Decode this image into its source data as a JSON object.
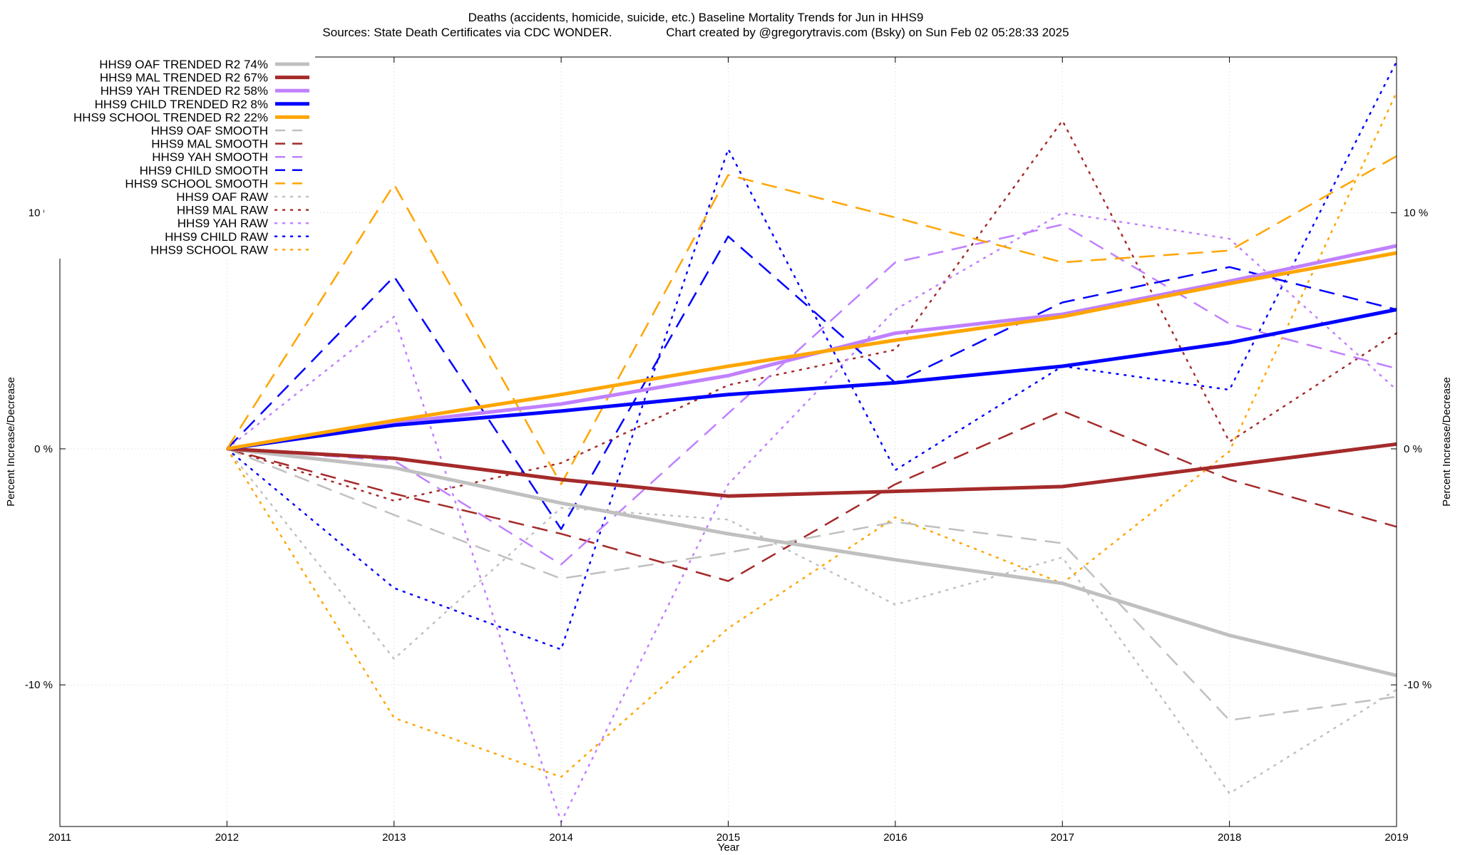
{
  "chart_data": {
    "type": "line",
    "title": "Deaths (accidents, homicide, suicide, etc.)  Baseline Mortality Trends for Jun in HHS9",
    "subtitle": "Sources: State Death Certificates via CDC WONDER.                Chart created by @gregorytravis.com (Bsky) on Sun Feb 02 05:28:33 2025",
    "xlabel": "Year",
    "ylabel": "Percent Increase/Decrease",
    "y2label": "Percent Increase/Decrease",
    "xlim": [
      2011,
      2019
    ],
    "ylim": [
      -16,
      16.6
    ],
    "x_ticks": [
      "2011",
      "2012",
      "2013",
      "2014",
      "2015",
      "2016",
      "2017",
      "2018",
      "2019"
    ],
    "y_ticks": [
      {
        "value": 10,
        "label": "10 %"
      },
      {
        "value": 0,
        "label": "0 %"
      },
      {
        "value": -10,
        "label": "-10 %"
      }
    ],
    "grid": true,
    "legend_position": "top-left",
    "x": [
      2012,
      2013,
      2014,
      2015,
      2016,
      2017,
      2018,
      2019
    ],
    "series": [
      {
        "name": "HHS9 OAF TRENDED R2  74%",
        "color": "#c0c0c0",
        "style": "trend",
        "values": [
          0,
          -0.8,
          -2.3,
          -3.6,
          -4.7,
          -5.7,
          -7.9,
          -9.6
        ]
      },
      {
        "name": "HHS9 MAL TRENDED R2  67%",
        "color": "#a52a2a",
        "style": "trend",
        "values": [
          0,
          -0.4,
          -1.3,
          -2.0,
          -1.8,
          -1.6,
          -0.7,
          0.2
        ]
      },
      {
        "name": "HHS9 YAH TRENDED R2  58%",
        "color": "#c080ff",
        "style": "trend",
        "values": [
          0,
          1.1,
          1.9,
          3.1,
          4.9,
          5.7,
          7.1,
          8.6
        ]
      },
      {
        "name": "HHS9 CHILD TRENDED R2   8%",
        "color": "#0000ff",
        "style": "trend",
        "values": [
          0,
          1.0,
          1.6,
          2.3,
          2.8,
          3.5,
          4.5,
          5.9
        ]
      },
      {
        "name": "HHS9 SCHOOL TRENDED R2  22%",
        "color": "#ffa500",
        "style": "trend",
        "values": [
          0,
          1.2,
          2.3,
          3.5,
          4.6,
          5.6,
          7.0,
          8.3
        ]
      },
      {
        "name": "HHS9 OAF SMOOTH",
        "color": "#c0c0c0",
        "style": "smooth",
        "values": [
          0,
          -2.8,
          -5.5,
          -4.4,
          -3.1,
          -4.0,
          -11.5,
          -10.5
        ]
      },
      {
        "name": "HHS9 MAL SMOOTH",
        "color": "#a52a2a",
        "style": "smooth",
        "values": [
          0,
          -1.9,
          -3.6,
          -5.6,
          -1.5,
          1.6,
          -1.3,
          -3.3
        ]
      },
      {
        "name": "HHS9 YAH SMOOTH",
        "color": "#c080ff",
        "style": "smooth",
        "values": [
          0,
          -0.5,
          -4.9,
          1.5,
          7.9,
          9.5,
          5.3,
          3.4
        ]
      },
      {
        "name": "HHS9 CHILD SMOOTH",
        "color": "#0000ff",
        "style": "smooth",
        "values": [
          0,
          7.3,
          -3.4,
          9.0,
          2.8,
          6.2,
          7.7,
          5.9
        ]
      },
      {
        "name": "HHS9 SCHOOL SMOOTH",
        "color": "#ffa500",
        "style": "smooth",
        "values": [
          0,
          11.2,
          -1.5,
          11.6,
          9.8,
          7.9,
          8.4,
          12.4
        ]
      },
      {
        "name": "HHS9 OAF RAW",
        "color": "#c0c0c0",
        "style": "raw",
        "values": [
          0,
          -8.9,
          -2.5,
          -3.0,
          -6.6,
          -4.6,
          -14.6,
          -10.2
        ]
      },
      {
        "name": "HHS9 MAL RAW",
        "color": "#a52a2a",
        "style": "raw",
        "values": [
          0,
          -2.2,
          -0.6,
          2.7,
          4.2,
          13.9,
          0.3,
          4.9
        ]
      },
      {
        "name": "HHS9 YAH RAW",
        "color": "#c080ff",
        "style": "raw",
        "values": [
          0,
          5.6,
          -15.8,
          -1.5,
          5.9,
          10.0,
          8.9,
          2.5
        ]
      },
      {
        "name": "HHS9 CHILD RAW",
        "color": "#0000ff",
        "style": "raw",
        "values": [
          0,
          -5.9,
          -8.5,
          12.7,
          -0.9,
          3.5,
          2.5,
          16.4
        ]
      },
      {
        "name": "HHS9 SCHOOL RAW",
        "color": "#ffa500",
        "style": "raw",
        "values": [
          0,
          -11.4,
          -13.9,
          -7.6,
          -2.9,
          -5.7,
          -0.1,
          15.1
        ]
      }
    ]
  }
}
